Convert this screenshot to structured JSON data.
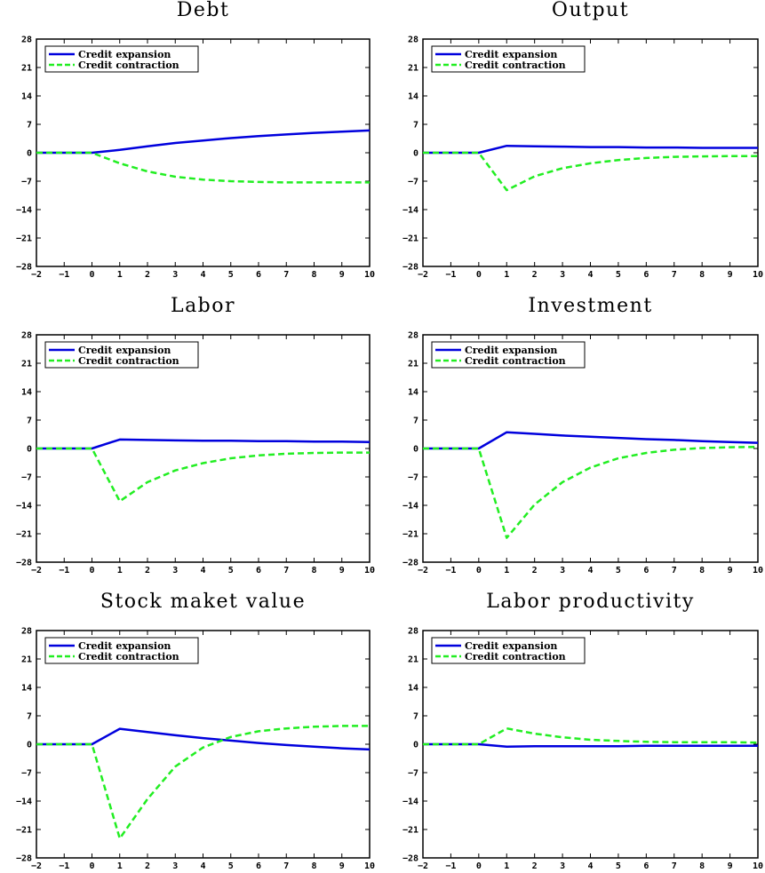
{
  "chart_data": [
    {
      "type": "line",
      "title": "Debt",
      "x": [
        -2,
        -1,
        0,
        1,
        2,
        3,
        4,
        5,
        6,
        7,
        8,
        9,
        10
      ],
      "xlim": [
        -2,
        10
      ],
      "ylim": [
        -28,
        28
      ],
      "xticks": [
        "−2",
        "−1",
        "0",
        "1",
        "2",
        "3",
        "4",
        "5",
        "6",
        "7",
        "8",
        "9",
        "10"
      ],
      "yticks": [
        "28",
        "21",
        "14",
        "7",
        "0",
        "−7",
        "−14",
        "−21",
        "−28"
      ],
      "legend_position": "top-left",
      "series": [
        {
          "name": "Credit expansion",
          "color": "#0000dd",
          "style": "solid",
          "values": [
            0,
            0,
            0,
            0.7,
            1.6,
            2.4,
            3.0,
            3.6,
            4.1,
            4.5,
            4.9,
            5.2,
            5.5
          ]
        },
        {
          "name": "Credit contraction",
          "color": "#22ee22",
          "style": "dashed",
          "values": [
            0,
            0,
            0,
            -2.6,
            -4.6,
            -5.9,
            -6.6,
            -7.0,
            -7.2,
            -7.3,
            -7.3,
            -7.3,
            -7.3
          ]
        }
      ]
    },
    {
      "type": "line",
      "title": "Output",
      "x": [
        -2,
        -1,
        0,
        1,
        2,
        3,
        4,
        5,
        6,
        7,
        8,
        9,
        10
      ],
      "xlim": [
        -2,
        10
      ],
      "ylim": [
        -28,
        28
      ],
      "xticks": [
        "−2",
        "−1",
        "0",
        "1",
        "2",
        "3",
        "4",
        "5",
        "6",
        "7",
        "8",
        "9",
        "10"
      ],
      "yticks": [
        "28",
        "21",
        "14",
        "7",
        "0",
        "−7",
        "−14",
        "−21",
        "−28"
      ],
      "legend_position": "top-left",
      "series": [
        {
          "name": "Credit expansion",
          "color": "#0000dd",
          "style": "solid",
          "values": [
            0,
            0,
            0,
            1.7,
            1.6,
            1.5,
            1.4,
            1.4,
            1.3,
            1.3,
            1.2,
            1.2,
            1.2
          ]
        },
        {
          "name": "Credit contraction",
          "color": "#22ee22",
          "style": "dashed",
          "values": [
            0,
            0,
            0,
            -9.2,
            -5.8,
            -3.8,
            -2.6,
            -1.8,
            -1.3,
            -1.0,
            -0.9,
            -0.8,
            -0.8
          ]
        }
      ]
    },
    {
      "type": "line",
      "title": "Labor",
      "x": [
        -2,
        -1,
        0,
        1,
        2,
        3,
        4,
        5,
        6,
        7,
        8,
        9,
        10
      ],
      "xlim": [
        -2,
        10
      ],
      "ylim": [
        -28,
        28
      ],
      "xticks": [
        "−2",
        "−1",
        "0",
        "1",
        "2",
        "3",
        "4",
        "5",
        "6",
        "7",
        "8",
        "9",
        "10"
      ],
      "yticks": [
        "28",
        "21",
        "14",
        "7",
        "0",
        "−7",
        "−14",
        "−21",
        "−28"
      ],
      "legend_position": "top-left",
      "series": [
        {
          "name": "Credit expansion",
          "color": "#0000dd",
          "style": "solid",
          "values": [
            0,
            0,
            0,
            2.2,
            2.1,
            2.0,
            1.9,
            1.9,
            1.8,
            1.8,
            1.7,
            1.7,
            1.6
          ]
        },
        {
          "name": "Credit contraction",
          "color": "#22ee22",
          "style": "dashed",
          "values": [
            0,
            0,
            0,
            -13.0,
            -8.3,
            -5.4,
            -3.6,
            -2.4,
            -1.7,
            -1.3,
            -1.1,
            -1.0,
            -1.0
          ]
        }
      ]
    },
    {
      "type": "line",
      "title": "Investment",
      "x": [
        -2,
        -1,
        0,
        1,
        2,
        3,
        4,
        5,
        6,
        7,
        8,
        9,
        10
      ],
      "xlim": [
        -2,
        10
      ],
      "ylim": [
        -28,
        28
      ],
      "xticks": [
        "−2",
        "−1",
        "0",
        "1",
        "2",
        "3",
        "4",
        "5",
        "6",
        "7",
        "8",
        "9",
        "10"
      ],
      "yticks": [
        "28",
        "21",
        "14",
        "7",
        "0",
        "−7",
        "−14",
        "−21",
        "−28"
      ],
      "legend_position": "top-left",
      "series": [
        {
          "name": "Credit expansion",
          "color": "#0000dd",
          "style": "solid",
          "values": [
            0,
            0,
            0,
            4.0,
            3.6,
            3.2,
            2.9,
            2.6,
            2.3,
            2.1,
            1.8,
            1.6,
            1.4
          ]
        },
        {
          "name": "Credit contraction",
          "color": "#22ee22",
          "style": "dashed",
          "values": [
            0,
            0,
            0,
            -22.0,
            -13.8,
            -8.3,
            -4.7,
            -2.4,
            -1.1,
            -0.3,
            0.1,
            0.3,
            0.4
          ]
        }
      ]
    },
    {
      "type": "line",
      "title": "Stock maket value",
      "x": [
        -2,
        -1,
        0,
        1,
        2,
        3,
        4,
        5,
        6,
        7,
        8,
        9,
        10
      ],
      "xlim": [
        -2,
        10
      ],
      "ylim": [
        -28,
        28
      ],
      "xticks": [
        "−2",
        "−1",
        "0",
        "1",
        "2",
        "3",
        "4",
        "5",
        "6",
        "7",
        "8",
        "9",
        "10"
      ],
      "yticks": [
        "28",
        "21",
        "14",
        "7",
        "0",
        "−7",
        "−14",
        "−21",
        "−28"
      ],
      "legend_position": "top-left",
      "series": [
        {
          "name": "Credit expansion",
          "color": "#0000dd",
          "style": "solid",
          "values": [
            0,
            0,
            0,
            3.8,
            3.0,
            2.2,
            1.5,
            0.9,
            0.3,
            -0.2,
            -0.6,
            -1.0,
            -1.3
          ]
        },
        {
          "name": "Credit contraction",
          "color": "#22ee22",
          "style": "dashed",
          "values": [
            0,
            0,
            0,
            -23.2,
            -13.5,
            -5.5,
            -0.8,
            1.8,
            3.2,
            3.9,
            4.3,
            4.5,
            4.5
          ]
        }
      ]
    },
    {
      "type": "line",
      "title": "Labor productivity",
      "x": [
        -2,
        -1,
        0,
        1,
        2,
        3,
        4,
        5,
        6,
        7,
        8,
        9,
        10
      ],
      "xlim": [
        -2,
        10
      ],
      "ylim": [
        -28,
        28
      ],
      "xticks": [
        "−2",
        "−1",
        "0",
        "1",
        "2",
        "3",
        "4",
        "5",
        "6",
        "7",
        "8",
        "9",
        "10"
      ],
      "yticks": [
        "28",
        "21",
        "14",
        "7",
        "0",
        "−7",
        "−14",
        "−21",
        "−28"
      ],
      "legend_position": "top-left",
      "series": [
        {
          "name": "Credit expansion",
          "color": "#0000dd",
          "style": "solid",
          "values": [
            0,
            0,
            0,
            -0.6,
            -0.5,
            -0.5,
            -0.5,
            -0.5,
            -0.4,
            -0.4,
            -0.4,
            -0.4,
            -0.4
          ]
        },
        {
          "name": "Credit contraction",
          "color": "#22ee22",
          "style": "dashed",
          "values": [
            0,
            0,
            0,
            3.9,
            2.6,
            1.7,
            1.1,
            0.8,
            0.6,
            0.5,
            0.5,
            0.5,
            0.4
          ]
        }
      ]
    }
  ]
}
